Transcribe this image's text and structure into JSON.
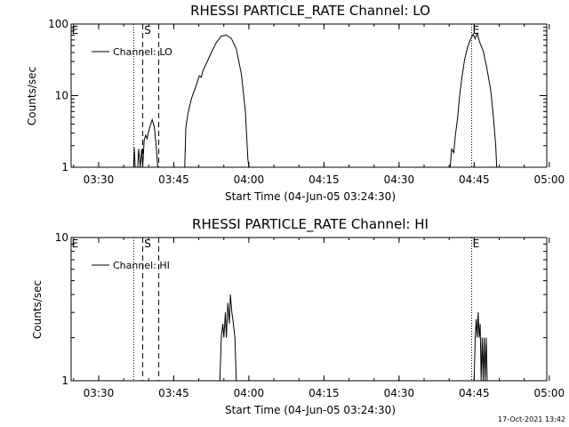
{
  "footer": {
    "stamp": "17-Oct-2021 13:42"
  },
  "chart_data": [
    {
      "type": "line",
      "title": "RHESSI PARTICLE_RATE Channel: LO",
      "xlabel": "Start Time (04-Jun-05 03:24:30)",
      "ylabel": "Counts/sec",
      "yscale": "log",
      "ylim": [
        1,
        100
      ],
      "xlim_minutes": [
        0,
        95
      ],
      "x_ticks": [
        {
          "label": "03:30",
          "minutes": 5.5
        },
        {
          "label": "03:45",
          "minutes": 20.5
        },
        {
          "label": "04:00",
          "minutes": 35.5
        },
        {
          "label": "04:15",
          "minutes": 50.5
        },
        {
          "label": "04:30",
          "minutes": 65.5
        },
        {
          "label": "04:45",
          "minutes": 80.5
        },
        {
          "label": "05:00",
          "minutes": 95.5
        }
      ],
      "y_ticks": [
        {
          "label": "1",
          "value": 1
        },
        {
          "label": "10",
          "value": 10
        },
        {
          "label": "100",
          "value": 100
        }
      ],
      "legend": {
        "label": "Channel: LO",
        "position": "top-left"
      },
      "vlines": [
        {
          "minutes": 12.5,
          "style": "dotted"
        },
        {
          "minutes": 14.3,
          "style": "dashed"
        },
        {
          "minutes": 17.5,
          "style": "dashed"
        },
        {
          "minutes": 80.0,
          "style": "dotted"
        },
        {
          "minutes": 95.0,
          "style": "dotted"
        }
      ],
      "markers": [
        {
          "text": "E",
          "minutes": 0.1
        },
        {
          "text": "S",
          "minutes": 14.6
        },
        {
          "text": "E",
          "minutes": 80.2
        }
      ],
      "series": [
        {
          "name": "Channel: LO",
          "segments": [
            [
              [
                12.5,
                1
              ],
              [
                12.6,
                1.9
              ],
              [
                12.8,
                1
              ],
              [
                13.3,
                1
              ],
              [
                13.5,
                1.8
              ],
              [
                13.8,
                1
              ],
              [
                14.1,
                1.8
              ],
              [
                14.3,
                1
              ],
              [
                14.6,
                2.4
              ],
              [
                14.9,
                2.8
              ],
              [
                15.2,
                2.5
              ],
              [
                15.4,
                3.0
              ],
              [
                15.8,
                3.8
              ],
              [
                16.2,
                4.6
              ],
              [
                16.6,
                3.7
              ],
              [
                17.0,
                2.0
              ],
              [
                17.3,
                1
              ]
            ],
            [
              [
                22.7,
                1
              ],
              [
                22.9,
                3.5
              ],
              [
                23.3,
                5.5
              ],
              [
                24.0,
                9.0
              ],
              [
                25.0,
                14.0
              ],
              [
                25.6,
                19.0
              ],
              [
                26.0,
                18.0
              ],
              [
                26.3,
                22.0
              ],
              [
                27.0,
                28.0
              ],
              [
                28.0,
                40.0
              ],
              [
                29.0,
                55.0
              ],
              [
                30.0,
                68.0
              ],
              [
                31.0,
                70.0
              ],
              [
                32.0,
                63.0
              ],
              [
                33.0,
                45.0
              ],
              [
                34.0,
                20.0
              ],
              [
                34.8,
                6.0
              ],
              [
                35.3,
                1.3
              ],
              [
                35.5,
                1
              ]
            ],
            [
              [
                75.7,
                1
              ],
              [
                76.0,
                1.8
              ],
              [
                76.4,
                1.6
              ],
              [
                76.8,
                3.0
              ],
              [
                77.2,
                5.0
              ],
              [
                77.6,
                10.0
              ],
              [
                78.0,
                17.0
              ],
              [
                78.6,
                32.0
              ],
              [
                79.2,
                48.0
              ],
              [
                79.8,
                62.0
              ],
              [
                80.3,
                72.0
              ],
              [
                80.7,
                62.0
              ],
              [
                81.1,
                74.0
              ],
              [
                81.6,
                56.0
              ],
              [
                82.3,
                42.0
              ],
              [
                83.0,
                25.0
              ],
              [
                83.8,
                12.0
              ],
              [
                84.3,
                5.5
              ],
              [
                84.8,
                2.0
              ],
              [
                85.0,
                1
              ]
            ]
          ]
        }
      ]
    },
    {
      "type": "line",
      "title": "RHESSI PARTICLE_RATE Channel: HI",
      "xlabel": "Start Time (04-Jun-05 03:24:30)",
      "ylabel": "Counts/sec",
      "yscale": "log",
      "ylim": [
        1,
        10
      ],
      "xlim_minutes": [
        0,
        95
      ],
      "x_ticks": [
        {
          "label": "03:30",
          "minutes": 5.5
        },
        {
          "label": "03:45",
          "minutes": 20.5
        },
        {
          "label": "04:00",
          "minutes": 35.5
        },
        {
          "label": "04:15",
          "minutes": 50.5
        },
        {
          "label": "04:30",
          "minutes": 65.5
        },
        {
          "label": "04:45",
          "minutes": 80.5
        },
        {
          "label": "05:00",
          "minutes": 95.5
        }
      ],
      "y_ticks": [
        {
          "label": "1",
          "value": 1
        },
        {
          "label": "10",
          "value": 10
        }
      ],
      "legend": {
        "label": "Channel: HI",
        "position": "top-left"
      },
      "vlines": [
        {
          "minutes": 12.5,
          "style": "dotted"
        },
        {
          "minutes": 14.3,
          "style": "dashed"
        },
        {
          "minutes": 17.5,
          "style": "dashed"
        },
        {
          "minutes": 80.0,
          "style": "dotted"
        },
        {
          "minutes": 95.0,
          "style": "dotted"
        }
      ],
      "markers": [
        {
          "text": "E",
          "minutes": 0.1
        },
        {
          "text": "S",
          "minutes": 14.6
        },
        {
          "text": "E",
          "minutes": 80.2
        }
      ],
      "series": [
        {
          "name": "Channel: HI",
          "segments": [
            [
              [
                29.7,
                1
              ],
              [
                30.0,
                2.0
              ],
              [
                30.3,
                2.5
              ],
              [
                30.5,
                2.0
              ],
              [
                30.8,
                3.0
              ],
              [
                31.0,
                2.0
              ],
              [
                31.3,
                3.5
              ],
              [
                31.6,
                2.5
              ],
              [
                31.8,
                4.0
              ],
              [
                32.1,
                3.0
              ],
              [
                32.4,
                2.5
              ],
              [
                32.7,
                2.0
              ],
              [
                33.0,
                1
              ]
            ],
            [
              [
                80.5,
                1
              ],
              [
                80.7,
                2.0
              ],
              [
                80.9,
                2.7
              ],
              [
                81.1,
                2.0
              ],
              [
                81.3,
                3.0
              ],
              [
                81.5,
                2.0
              ],
              [
                81.7,
                2.5
              ],
              [
                81.9,
                1
              ],
              [
                82.1,
                2.0
              ],
              [
                82.3,
                1
              ],
              [
                82.5,
                2.0
              ],
              [
                82.7,
                1
              ],
              [
                82.9,
                2.0
              ],
              [
                83.1,
                1
              ]
            ]
          ]
        }
      ]
    }
  ]
}
